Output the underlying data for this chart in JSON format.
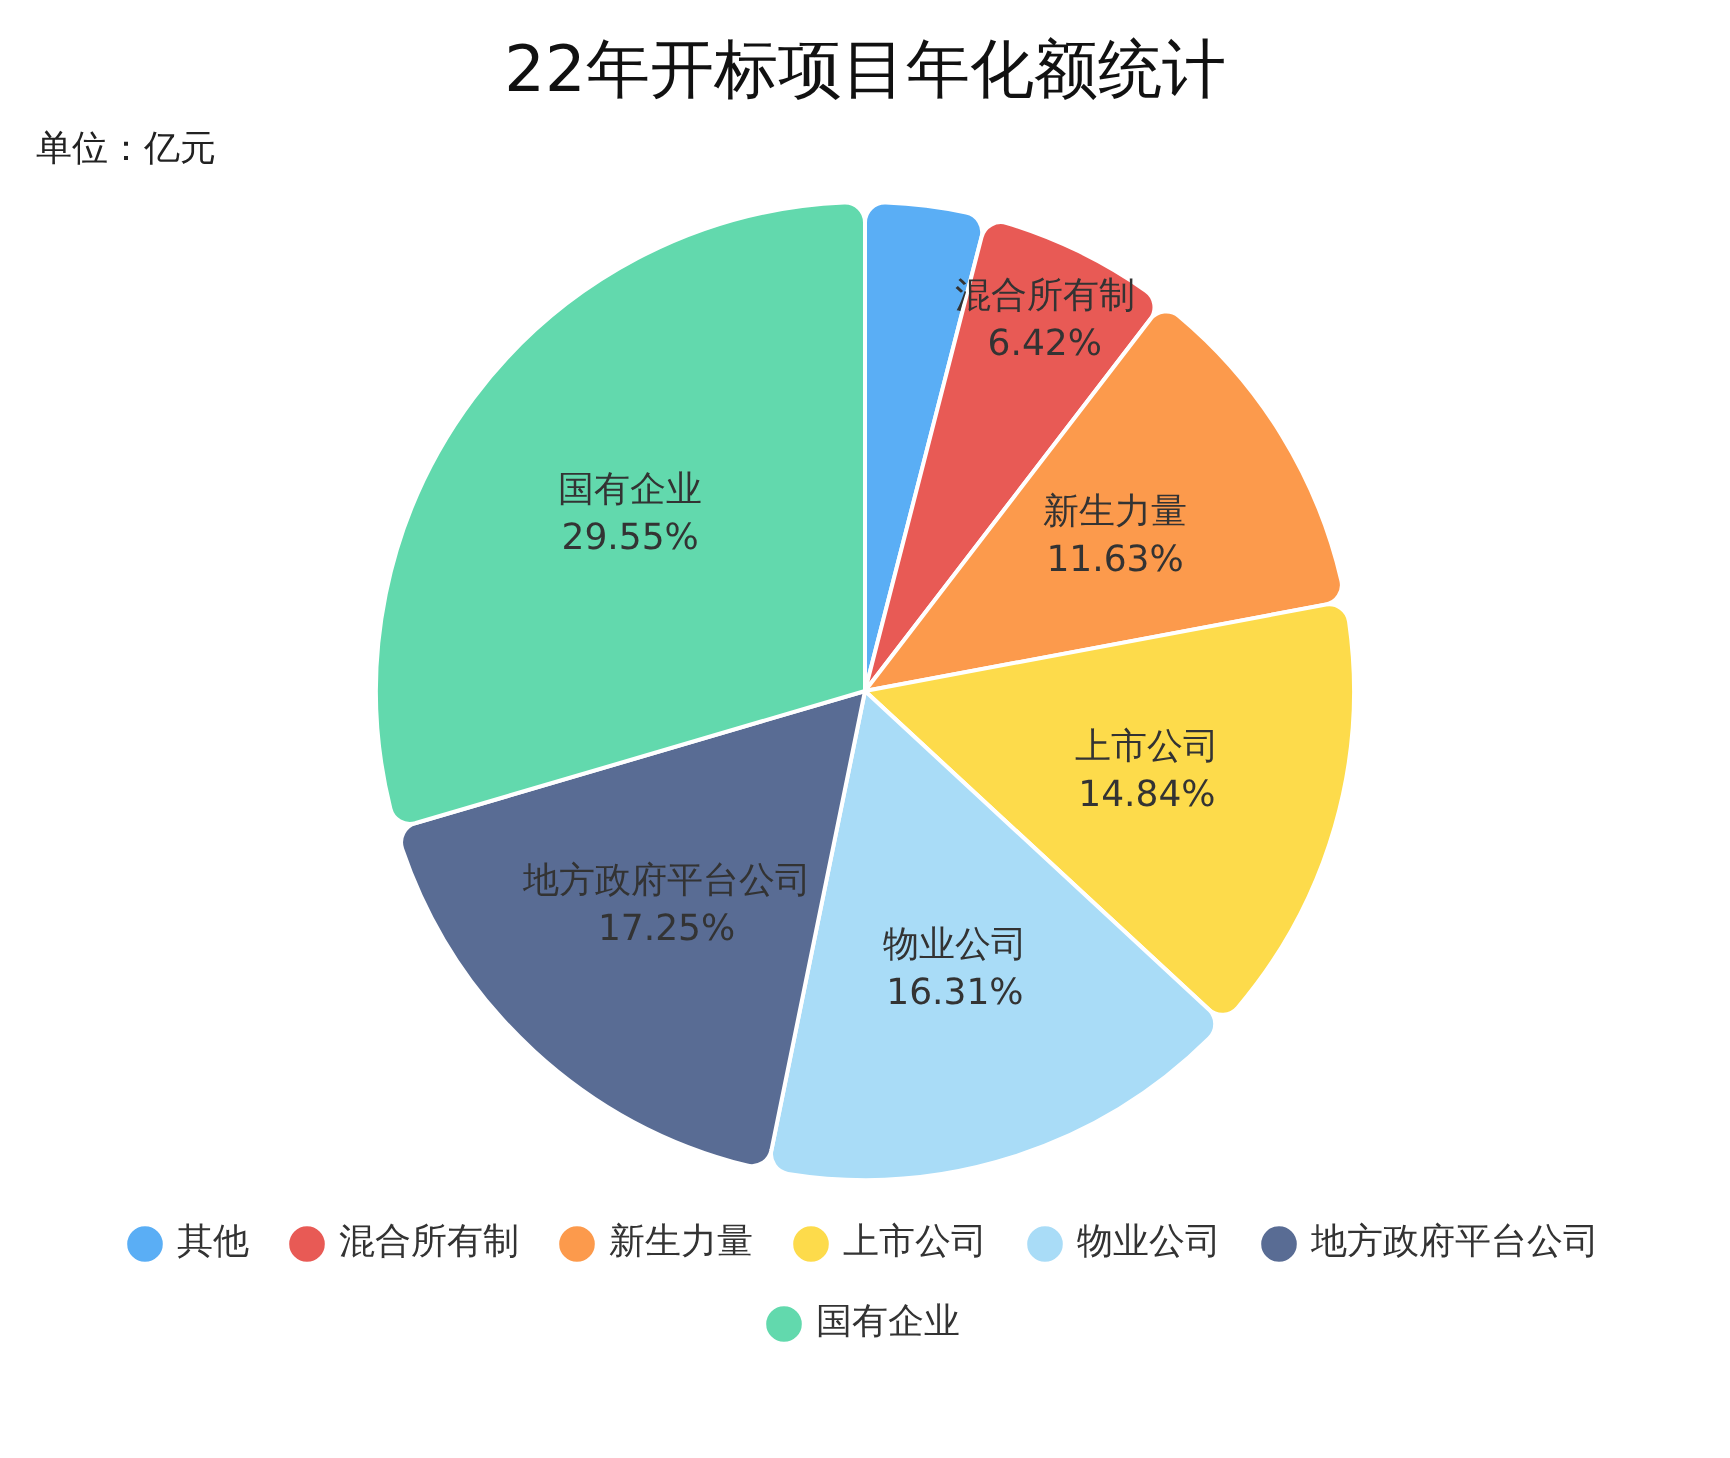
{
  "chart_data": {
    "type": "pie",
    "title": "22年开标项目年化额统计",
    "subtitle": "单位：亿元",
    "categories": [
      "其他",
      "混合所有制",
      "新生力量",
      "上市公司",
      "物业公司",
      "地方政府平台公司",
      "国有企业"
    ],
    "values": [
      4.0,
      6.42,
      11.63,
      14.84,
      16.31,
      17.25,
      29.55
    ],
    "value_labels": [
      null,
      "6.42%",
      "11.63%",
      "14.84%",
      "16.31%",
      "17.25%",
      "29.55%"
    ],
    "colors": [
      "#5aaef5",
      "#e85a55",
      "#fc9a4c",
      "#fddb4b",
      "#a9dcf7",
      "#596c94",
      "#62d9ad"
    ],
    "legend": "bottom"
  }
}
